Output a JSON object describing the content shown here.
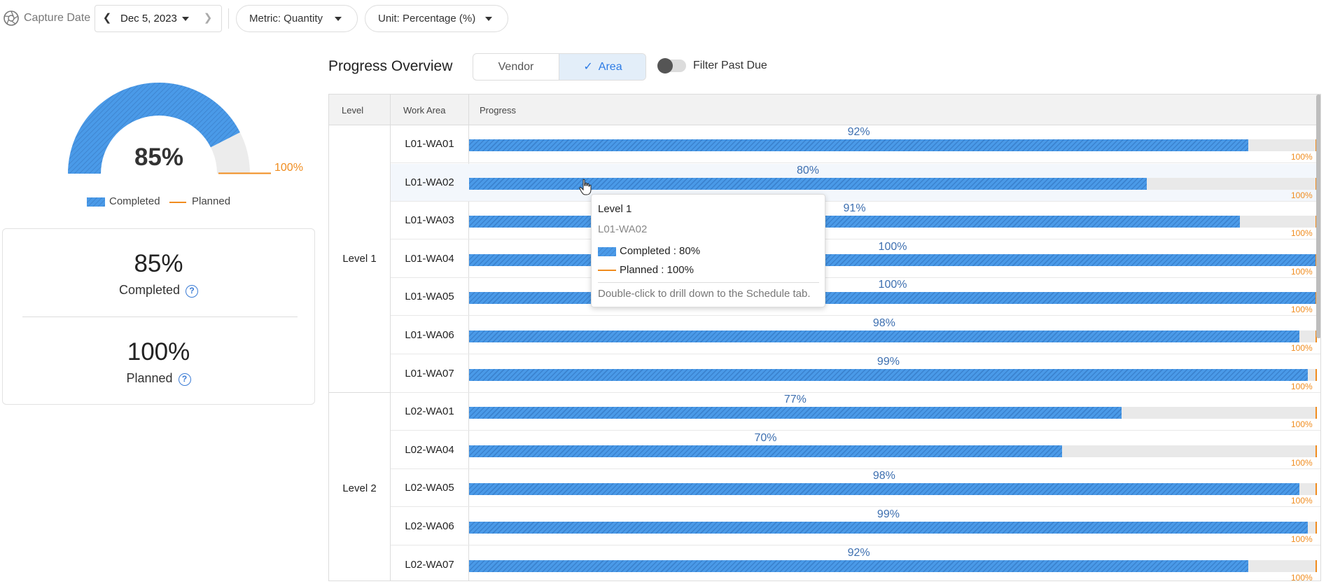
{
  "colors": {
    "completed": "#4a9ae8",
    "planned": "#f08c1e",
    "accent": "#2c7be5"
  },
  "toolbar": {
    "capture_label": "Capture Date",
    "date": "Dec 5, 2023",
    "metric_label": "Metric: Quantity",
    "unit_label": "Unit: Percentage (%)"
  },
  "gauge": {
    "completed": 85,
    "planned": 100,
    "value_label": "85%",
    "planned_label": "100%",
    "legend_completed": "Completed",
    "legend_planned": "Planned"
  },
  "summary": {
    "completed_value": "85%",
    "completed_label": "Completed",
    "planned_value": "100%",
    "planned_label": "Planned"
  },
  "overview": {
    "title": "Progress Overview",
    "tab_vendor": "Vendor",
    "tab_area": "Area",
    "active_tab": "Area",
    "filter_label": "Filter Past Due",
    "filter_on": false
  },
  "table": {
    "headers": {
      "level": "Level",
      "work_area": "Work Area",
      "progress": "Progress"
    },
    "groups": [
      {
        "level": "Level 1",
        "rows": [
          {
            "area": "L01-WA01",
            "value": 92,
            "label": "92%",
            "planned": 100,
            "planned_label": "100%"
          },
          {
            "area": "L01-WA02",
            "value": 80,
            "label": "80%",
            "planned": 100,
            "planned_label": "100%"
          },
          {
            "area": "L01-WA03",
            "value": 91,
            "label": "91%",
            "planned": 100,
            "planned_label": "100%"
          },
          {
            "area": "L01-WA04",
            "value": 100,
            "label": "100%",
            "planned": 100,
            "planned_label": "100%"
          },
          {
            "area": "L01-WA05",
            "value": 100,
            "label": "100%",
            "planned": 100,
            "planned_label": "100%"
          },
          {
            "area": "L01-WA06",
            "value": 98,
            "label": "98%",
            "planned": 100,
            "planned_label": "100%"
          },
          {
            "area": "L01-WA07",
            "value": 99,
            "label": "99%",
            "planned": 100,
            "planned_label": "100%"
          }
        ]
      },
      {
        "level": "Level 2",
        "rows": [
          {
            "area": "L02-WA01",
            "value": 77,
            "label": "77%",
            "planned": 100,
            "planned_label": "100%"
          },
          {
            "area": "L02-WA04",
            "value": 70,
            "label": "70%",
            "planned": 100,
            "planned_label": "100%"
          },
          {
            "area": "L02-WA05",
            "value": 98,
            "label": "98%",
            "planned": 100,
            "planned_label": "100%"
          },
          {
            "area": "L02-WA06",
            "value": 99,
            "label": "99%",
            "planned": 100,
            "planned_label": "100%"
          },
          {
            "area": "L02-WA07",
            "value": 92,
            "label": "92%",
            "planned": 100,
            "planned_label": "100%"
          }
        ]
      }
    ]
  },
  "tooltip": {
    "level": "Level 1",
    "work_area": "L01-WA02",
    "completed": "Completed : 80%",
    "planned": "Planned : 100%",
    "hint": "Double-click to drill down to the Schedule tab."
  }
}
